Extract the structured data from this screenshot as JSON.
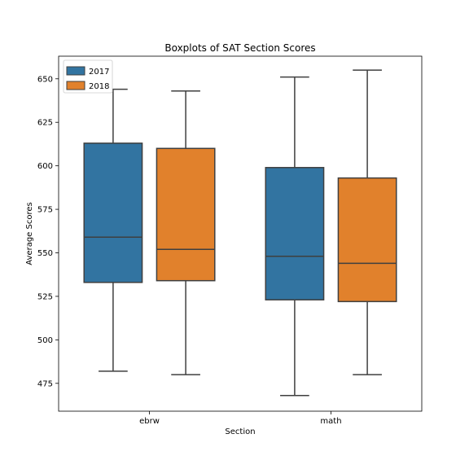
{
  "chart_data": {
    "type": "boxplot",
    "title": "Boxplots of SAT Section Scores",
    "xlabel": "Section",
    "ylabel": "Average Scores",
    "ylim": [
      459,
      663
    ],
    "yticks": [
      475,
      500,
      525,
      550,
      575,
      600,
      625,
      650
    ],
    "categories": [
      "ebrw",
      "math"
    ],
    "legend_position": "top-left",
    "grid": false,
    "series": [
      {
        "name": "2017",
        "color": "#3274a1",
        "boxes": [
          {
            "category": "ebrw",
            "min": 482,
            "q1": 533,
            "median": 559,
            "q3": 613,
            "max": 644
          },
          {
            "category": "math",
            "min": 468,
            "q1": 523,
            "median": 548,
            "q3": 599,
            "max": 651
          }
        ]
      },
      {
        "name": "2018",
        "color": "#e1812c",
        "boxes": [
          {
            "category": "ebrw",
            "min": 480,
            "q1": 534,
            "median": 552,
            "q3": 610,
            "max": 643
          },
          {
            "category": "math",
            "min": 480,
            "q1": 522,
            "median": 544,
            "q3": 593,
            "max": 655
          }
        ]
      }
    ]
  }
}
